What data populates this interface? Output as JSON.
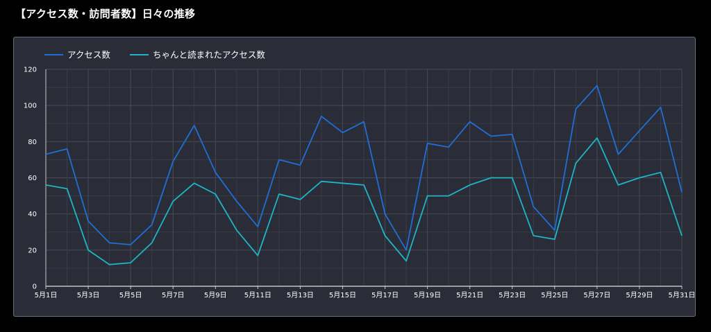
{
  "page": {
    "title": "【アクセス数・訪問者数】日々の推移"
  },
  "colors": {
    "background": "#000000",
    "panel": "#2a2d38",
    "grid": "#474b57",
    "series1": "#1f6fd6",
    "series2": "#1fb5c4"
  },
  "chart_data": {
    "type": "line",
    "title": "",
    "xlabel": "",
    "ylabel": "",
    "ylim": [
      0,
      120
    ],
    "yticks": [
      0,
      20,
      40,
      60,
      80,
      100,
      120
    ],
    "grid": true,
    "legend_position": "top-left",
    "x": [
      "5月1日",
      "5月2日",
      "5月3日",
      "5月4日",
      "5月5日",
      "5月6日",
      "5月7日",
      "5月8日",
      "5月9日",
      "5月10日",
      "5月11日",
      "5月12日",
      "5月13日",
      "5月14日",
      "5月15日",
      "5月16日",
      "5月17日",
      "5月18日",
      "5月19日",
      "5月20日",
      "5月21日",
      "5月22日",
      "5月23日",
      "5月24日",
      "5月25日",
      "5月26日",
      "5月27日",
      "5月28日",
      "5月29日",
      "5月30日",
      "5月31日"
    ],
    "xtick_labels": [
      "5月1日",
      "5月3日",
      "5月5日",
      "5月7日",
      "5月9日",
      "5月11日",
      "5月13日",
      "5月15日",
      "5月17日",
      "5月19日",
      "5月21日",
      "5月23日",
      "5月25日",
      "5月27日",
      "5月29日",
      "5月31日"
    ],
    "series": [
      {
        "name": "アクセス数",
        "color": "#1f6fd6",
        "values": [
          73,
          76,
          36,
          24,
          23,
          34,
          69,
          89,
          63,
          47,
          33,
          70,
          67,
          94,
          85,
          91,
          40,
          20,
          79,
          77,
          91,
          83,
          84,
          44,
          31,
          98,
          111,
          73,
          86,
          99,
          52
        ]
      },
      {
        "name": "ちゃんと読まれたアクセス数",
        "color": "#1fb5c4",
        "values": [
          56,
          54,
          20,
          12,
          13,
          24,
          47,
          57,
          51,
          31,
          17,
          51,
          48,
          58,
          57,
          56,
          28,
          14,
          50,
          50,
          56,
          60,
          60,
          28,
          26,
          68,
          82,
          56,
          60,
          63,
          28
        ]
      }
    ]
  }
}
